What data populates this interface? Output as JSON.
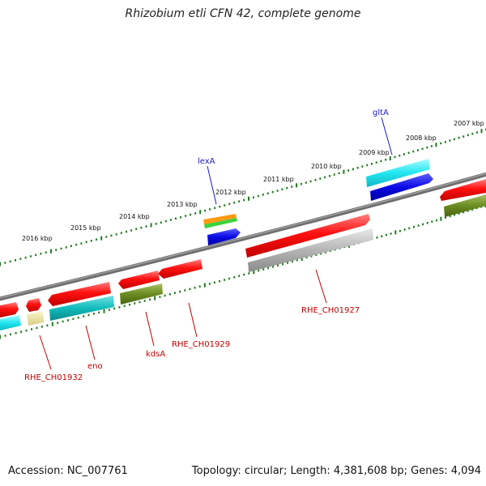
{
  "title": "Rhizobium etli CFN 42, complete genome",
  "footer": {
    "accession": "Accession: NC_007761",
    "summary": "Topology: circular; Length: 4,381,608 bp; Genes: 4,094"
  },
  "kbp_labels": [
    "2016 kbp",
    "2015 kbp",
    "2014 kbp",
    "2013 kbp",
    "2012 kbp",
    "2011 kbp",
    "2010 kbp",
    "2009 kbp",
    "2008 kbp",
    "2007 kbp"
  ],
  "gene_labels": {
    "lexA": "lexA",
    "gltA": "gltA",
    "RHE_CH01932": "RHE_CH01932",
    "eno": "eno",
    "kdsA": "kdsA",
    "RHE_CH01929": "RHE_CH01929",
    "RHE_CH01927": "RHE_CH01927"
  },
  "colors": {
    "backbone": "#7a7a7a",
    "tick": "#1f7a1f",
    "red": "#ff1010",
    "cyan": "#22e6f0",
    "blue": "#0a0ae6",
    "olive": "#6b8c22",
    "teal": "#12bcbc",
    "grey": "#b4b4b4",
    "khaki": "#ece4a0",
    "orange": "#ff9a10",
    "green": "#3cd23c",
    "label_blue": "#1a1acc",
    "label_red": "#c40000"
  }
}
